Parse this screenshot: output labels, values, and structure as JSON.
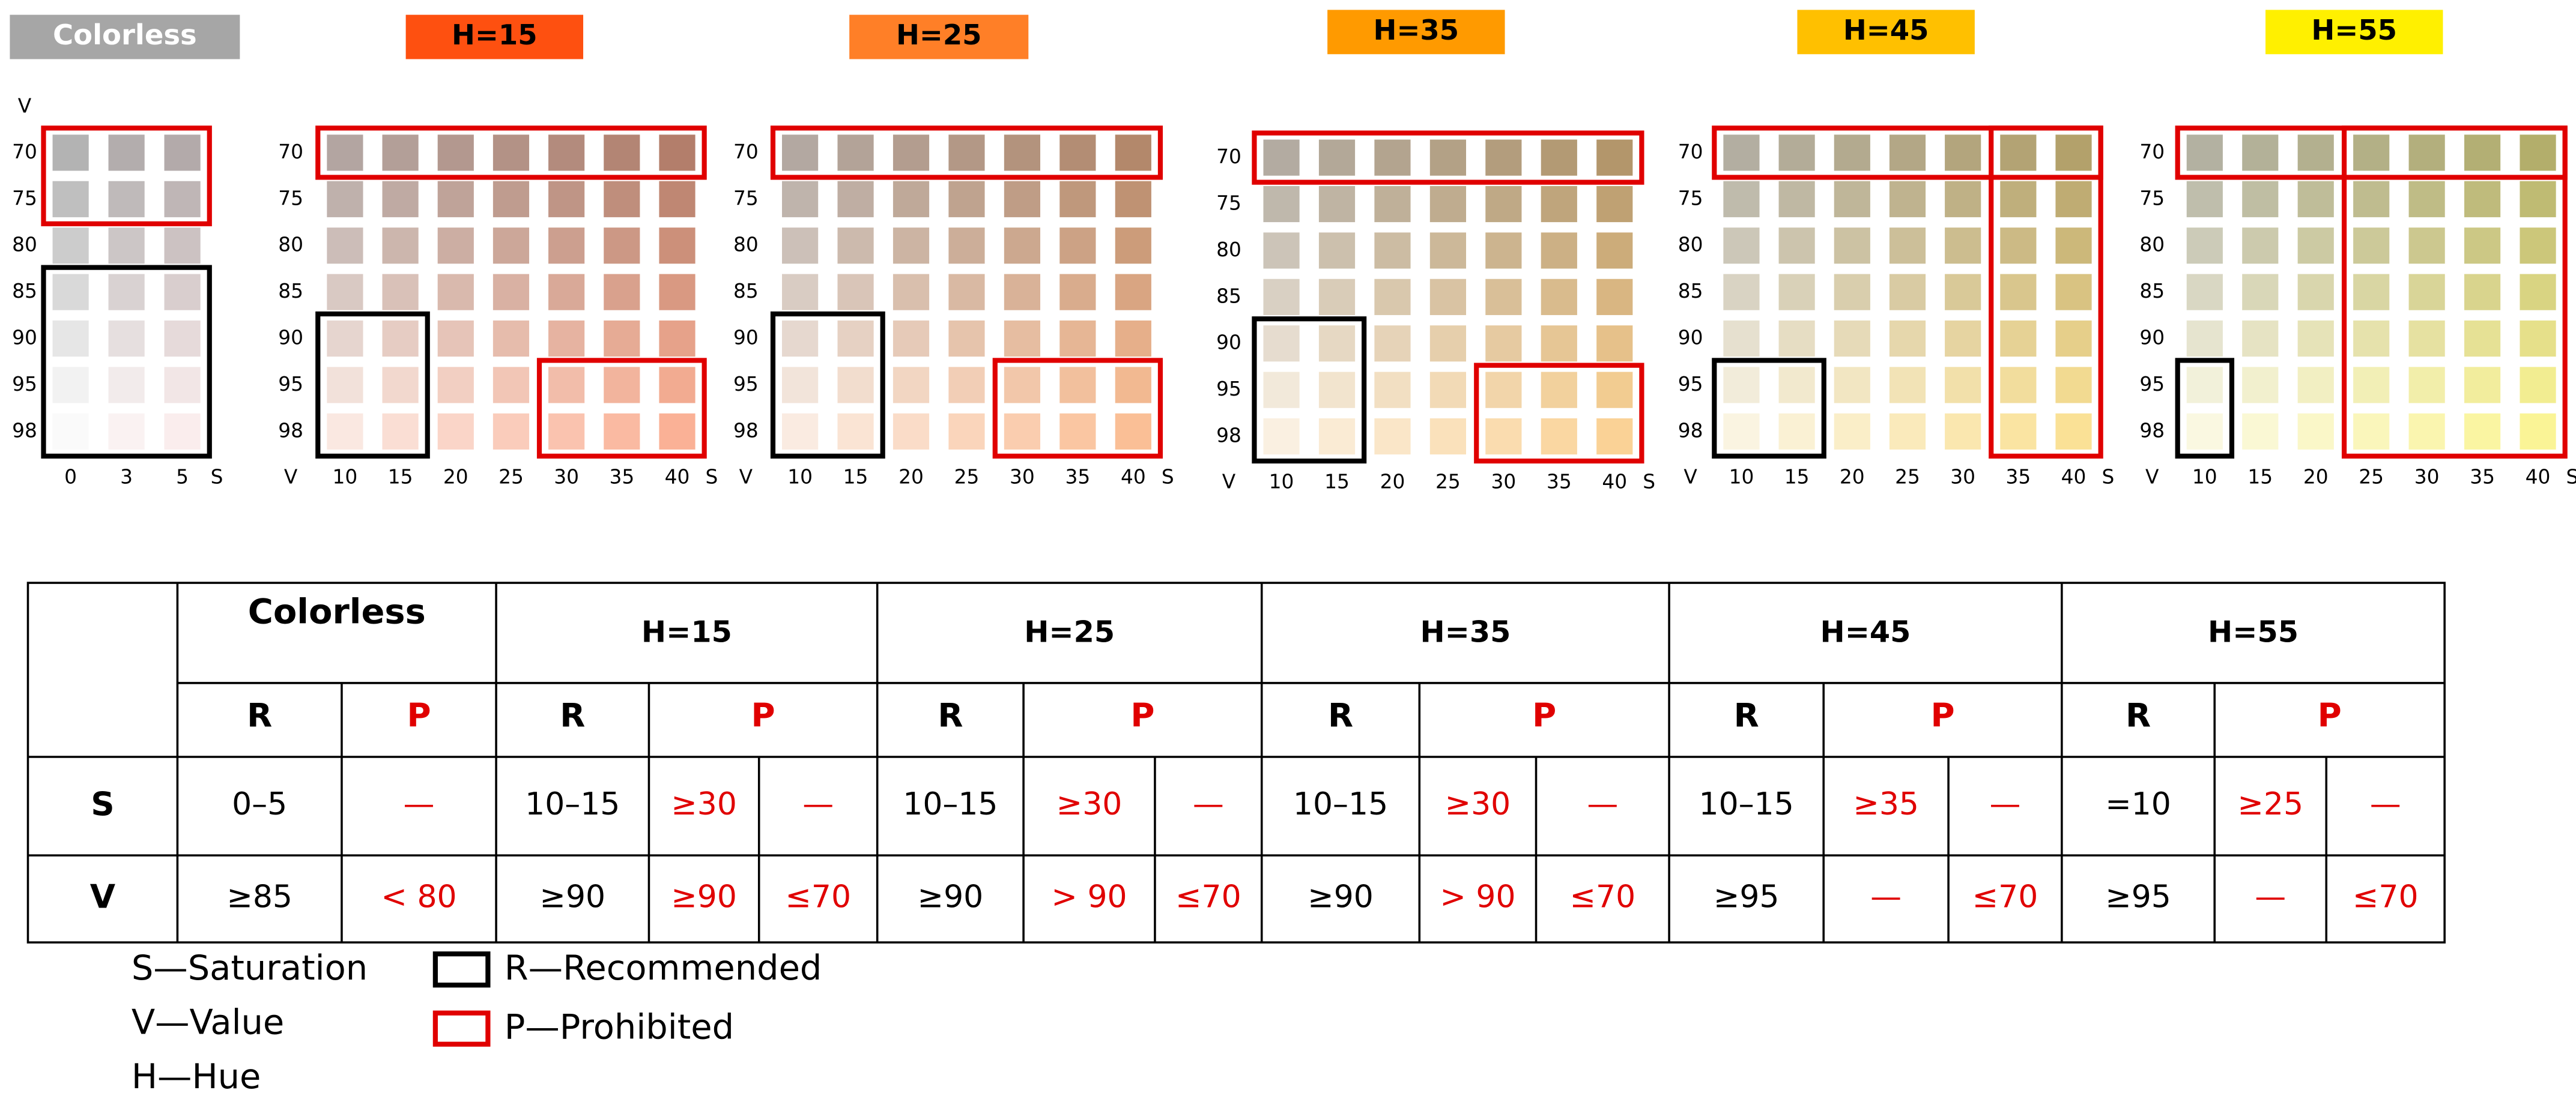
{
  "panels": [
    {
      "title": "Colorless",
      "color": "#a6a6a6",
      "v_axis": "V",
      "s_axis": "S",
      "v_labels": [
        70,
        75,
        80,
        85,
        90,
        95,
        98
      ],
      "s_labels": [
        0,
        3,
        5
      ]
    },
    {
      "title": "H=15",
      "color": "#fe5010",
      "v_axis": "V",
      "s_axis": "S",
      "v_labels": [
        70,
        75,
        80,
        85,
        90,
        95,
        98
      ],
      "s_labels": [
        10,
        15,
        20,
        25,
        30,
        35,
        40
      ]
    },
    {
      "title": "H=25",
      "color": "#ff7f27",
      "v_axis": "V",
      "s_axis": "S",
      "v_labels": [
        70,
        75,
        80,
        85,
        90,
        95,
        98
      ],
      "s_labels": [
        10,
        15,
        20,
        25,
        30,
        35,
        40
      ]
    },
    {
      "title": "H=35",
      "color": "#ff9a00",
      "v_axis": "V",
      "s_axis": "S",
      "v_labels": [
        70,
        75,
        80,
        85,
        90,
        95,
        98
      ],
      "s_labels": [
        10,
        15,
        20,
        25,
        30,
        35,
        40
      ]
    },
    {
      "title": "H=45",
      "color": "#ffc000",
      "v_axis": "V",
      "s_axis": "S",
      "v_labels": [
        70,
        75,
        80,
        85,
        90,
        95,
        98
      ],
      "s_labels": [
        10,
        15,
        20,
        25,
        30,
        35,
        40
      ]
    },
    {
      "title": "H=55",
      "color": "#fff000",
      "v_axis": "V",
      "s_axis": "S",
      "v_labels": [
        70,
        75,
        80,
        85,
        90,
        95,
        98
      ],
      "s_labels": [
        10,
        15,
        20,
        25,
        30,
        35,
        40
      ]
    }
  ],
  "table": {
    "row_labels": [
      "S",
      "V"
    ],
    "groups": [
      {
        "title": "Colorless",
        "R": "R",
        "P": "P",
        "S": [
          "0–5",
          "—"
        ],
        "V": [
          "≥85",
          "< 80"
        ]
      },
      {
        "title": "H=15",
        "R": "R",
        "P": "P",
        "S": [
          "10–15",
          "≥30",
          "—"
        ],
        "V": [
          "≥90",
          "≥90",
          "≤70"
        ]
      },
      {
        "title": "H=25",
        "R": "R",
        "P": "P",
        "S": [
          "10–15",
          "≥30",
          "—"
        ],
        "V": [
          "≥90",
          "> 90",
          "≤70"
        ]
      },
      {
        "title": "H=35",
        "R": "R",
        "P": "P",
        "S": [
          "10–15",
          "≥30",
          "—"
        ],
        "V": [
          "≥90",
          "> 90",
          "≤70"
        ]
      },
      {
        "title": "H=45",
        "R": "R",
        "P": "P",
        "S": [
          "10–15",
          "≥35",
          "—"
        ],
        "V": [
          "≥95",
          "—",
          "≤70"
        ]
      },
      {
        "title": "H=55",
        "R": "R",
        "P": "P",
        "S": [
          "=10",
          "≥25",
          "—"
        ],
        "V": [
          "≥95",
          "—",
          "≤70"
        ]
      }
    ]
  },
  "legend": {
    "notes": [
      "S—Saturation",
      "V—Value",
      "H—Hue"
    ],
    "recommended": "R—Recommended",
    "prohibited": "P—Prohibited"
  }
}
